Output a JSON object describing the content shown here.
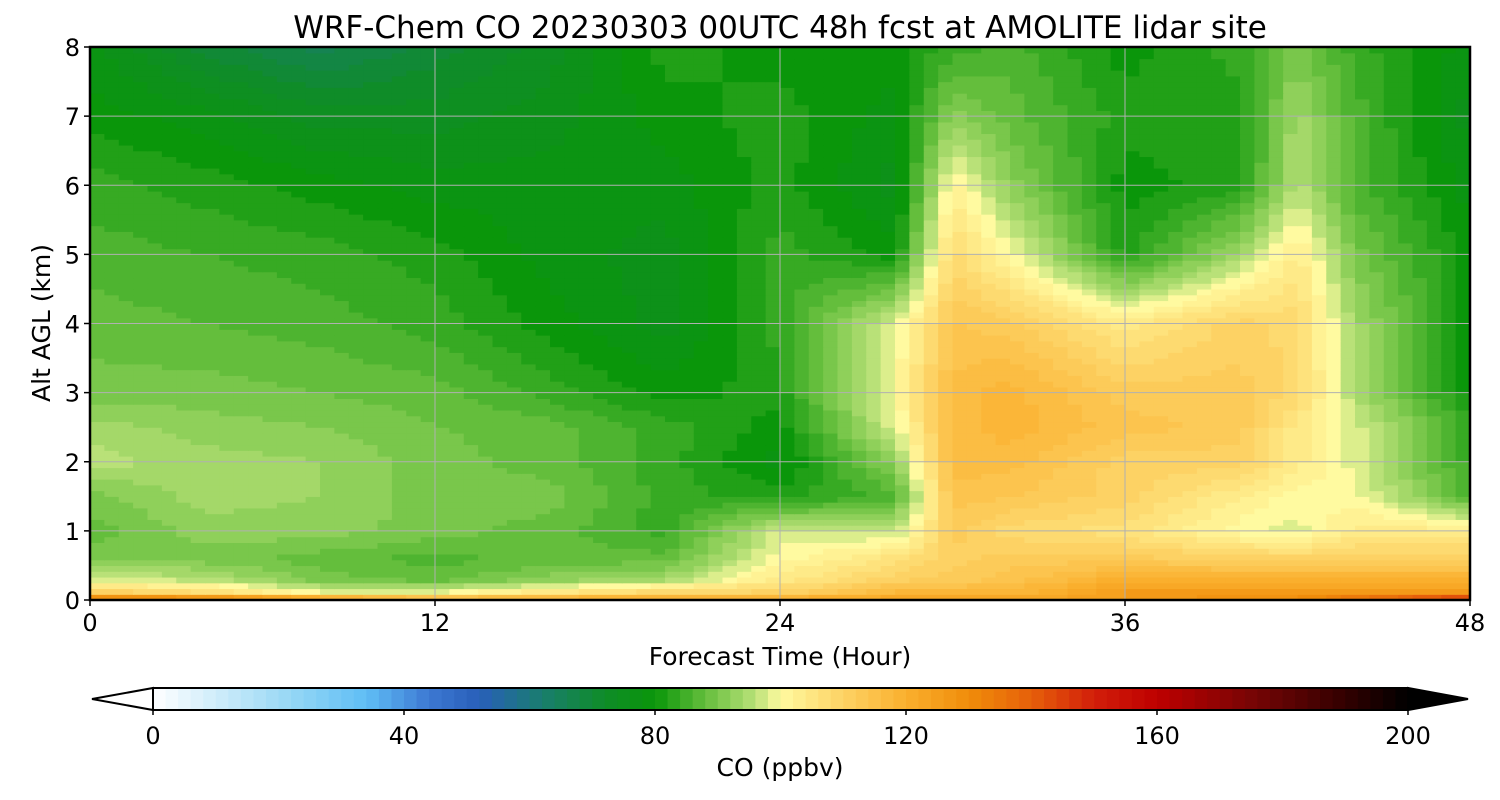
{
  "chart_data": {
    "type": "heatmap",
    "title": "WRF-Chem CO  20230303 00UTC 48h fcst at AMOLITE lidar site",
    "xlabel": "Forecast Time (Hour)",
    "ylabel": "Alt AGL (km)",
    "xlim": [
      0,
      48
    ],
    "ylim": [
      0,
      8
    ],
    "xticks": [
      "0",
      "12",
      "24",
      "36",
      "48"
    ],
    "yticks": [
      "0",
      "1",
      "2",
      "3",
      "4",
      "5",
      "6",
      "7",
      "8"
    ],
    "grid": true,
    "colorbar": {
      "label": "CO  (ppbv)",
      "range": [
        0,
        200
      ],
      "ticks": [
        "0",
        "40",
        "80",
        "120",
        "160",
        "200"
      ],
      "extend": "both",
      "orientation": "horizontal",
      "placement": "bottom"
    },
    "x": [
      0,
      4,
      8,
      12,
      16,
      20,
      24,
      28,
      30,
      32,
      36,
      40,
      42,
      44,
      48
    ],
    "y": [
      0,
      0.1,
      0.3,
      0.6,
      1,
      1.5,
      2,
      2.5,
      3,
      4,
      5,
      6,
      7,
      8
    ],
    "z": [
      [
        140,
        140,
        132,
        124,
        124,
        124,
        124,
        124,
        124,
        124,
        124,
        130,
        130,
        140,
        155
      ],
      [
        112,
        108,
        100,
        100,
        106,
        110,
        110,
        118,
        118,
        118,
        126,
        126,
        126,
        126,
        126
      ],
      [
        98,
        96,
        90,
        88,
        92,
        94,
        104,
        110,
        112,
        114,
        120,
        120,
        120,
        120,
        120
      ],
      [
        90,
        90,
        88,
        86,
        88,
        88,
        100,
        106,
        110,
        112,
        112,
        110,
        110,
        110,
        110
      ],
      [
        88,
        92,
        92,
        90,
        88,
        84,
        98,
        96,
        112,
        108,
        106,
        100,
        98,
        104,
        104
      ],
      [
        90,
        94,
        93,
        90,
        90,
        84,
        82,
        86,
        114,
        113,
        110,
        103,
        100,
        100,
        86
      ],
      [
        96,
        94,
        93,
        90,
        88,
        84,
        78,
        92,
        116,
        116,
        110,
        110,
        104,
        98,
        84
      ],
      [
        94,
        92,
        91,
        89,
        88,
        84,
        80,
        98,
        116,
        118,
        114,
        112,
        104,
        98,
        84
      ],
      [
        90,
        90,
        89,
        88,
        84,
        80,
        82,
        100,
        116,
        118,
        112,
        112,
        108,
        95,
        80
      ],
      [
        88,
        87,
        86,
        84,
        80,
        76,
        84,
        98,
        113,
        112,
        104,
        110,
        108,
        94,
        80
      ],
      [
        86,
        85,
        84,
        82,
        78,
        76,
        84,
        80,
        108,
        100,
        82,
        94,
        104,
        90,
        80
      ],
      [
        84,
        82,
        80,
        78,
        78,
        78,
        82,
        76,
        102,
        92,
        80,
        82,
        96,
        86,
        78
      ],
      [
        80,
        78,
        74,
        74,
        76,
        80,
        82,
        78,
        92,
        88,
        82,
        82,
        94,
        86,
        76
      ],
      [
        78,
        70,
        66,
        70,
        74,
        82,
        80,
        80,
        84,
        86,
        80,
        84,
        90,
        84,
        78
      ]
    ]
  }
}
